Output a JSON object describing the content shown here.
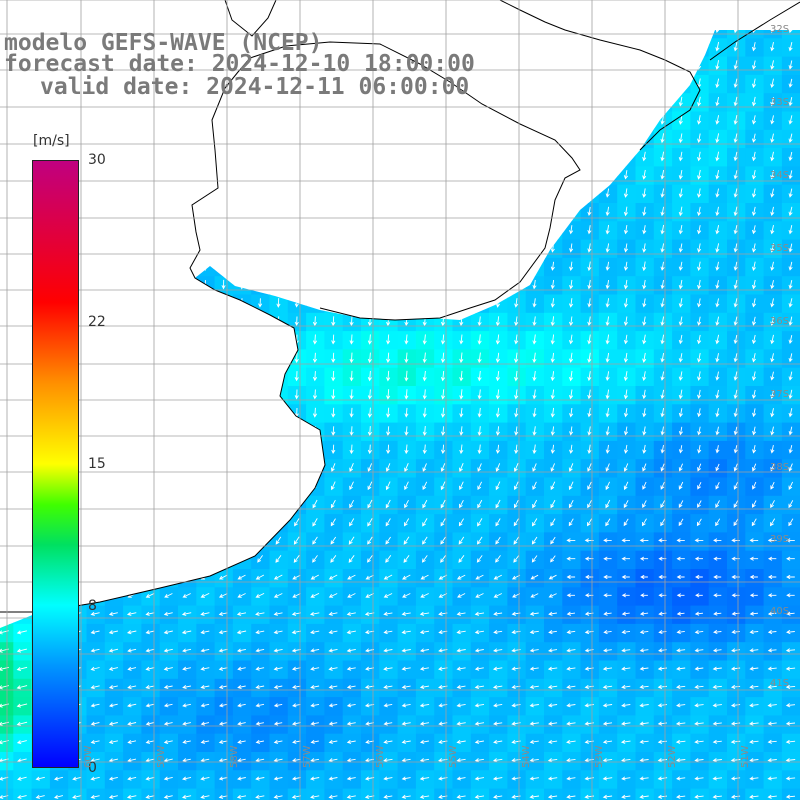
{
  "title": {
    "line1": "modelo GEFS-WAVE (NCEP)",
    "line2": "forecast date: 2024-12-10 18:00:00",
    "line3": "valid date: 2024-12-11 06:00:00"
  },
  "colorbar": {
    "unit": "[m/s]",
    "min": 0,
    "max": 30,
    "ticks": [
      "30",
      "22",
      "15",
      "8",
      "0"
    ],
    "tick_values": [
      30,
      22,
      15,
      8,
      0
    ],
    "stops": [
      {
        "v": 0,
        "color": "#0000ff"
      },
      {
        "v": 5,
        "color": "#0096ff"
      },
      {
        "v": 8,
        "color": "#00ffff"
      },
      {
        "v": 11,
        "color": "#00e060"
      },
      {
        "v": 13,
        "color": "#40ff00"
      },
      {
        "v": 15,
        "color": "#ffff00"
      },
      {
        "v": 19,
        "color": "#ff9000"
      },
      {
        "v": 23,
        "color": "#ff0000"
      },
      {
        "v": 30,
        "color": "#c00080"
      }
    ]
  },
  "axes": {
    "lat_labels": [
      "32S",
      "33S",
      "34S",
      "35S",
      "36S",
      "37S",
      "38S",
      "39S",
      "40S",
      "41S"
    ],
    "lon_labels": [
      "60W",
      "59W",
      "58W",
      "57W",
      "56W",
      "55W",
      "54W",
      "53W",
      "52W",
      "51W"
    ]
  },
  "colors": {
    "land": "#ffffff",
    "coast": "#000000",
    "grid": "#a0a0a0",
    "arrow": "#ffffff"
  }
}
